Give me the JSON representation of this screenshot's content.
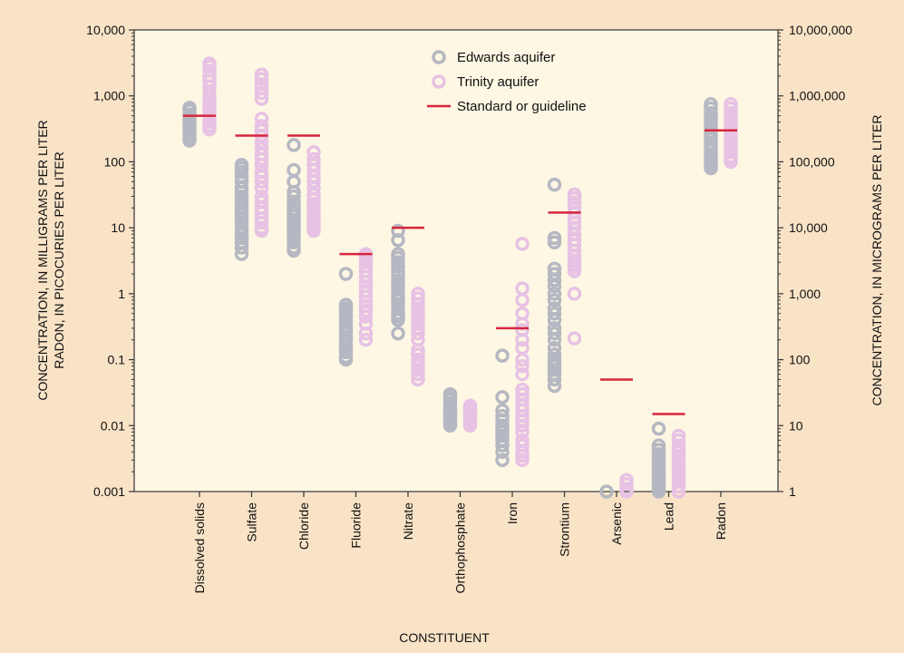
{
  "chart_data": {
    "type": "scatter",
    "y_scale": "log",
    "ylim": [
      0.001,
      10000
    ],
    "y_ticks": [
      0.001,
      0.01,
      0.1,
      1,
      10,
      100,
      1000,
      10000
    ],
    "y_tick_labels": [
      "0.001",
      "0.01",
      "0.1",
      "1",
      "10",
      "100",
      "1,000",
      "10,000"
    ],
    "y2_tick_labels": [
      "1",
      "10",
      "100",
      "1,000",
      "10,000",
      "100,000",
      "1,000,000",
      "10,000,000"
    ],
    "ylabel_line1": "CONCENTRATION, IN MILLIGRAMS PER LITER",
    "ylabel_line2": "RADON, IN PICOCURIES PER LITER",
    "y2label": "CONCENTRATION, IN MICROGRAMS PER LITER",
    "xlabel": "CONSTITUENT",
    "categories": [
      "Dissolved solids",
      "Sulfate",
      "Chloride",
      "Fluoride",
      "Nitrate",
      "Orthophosphate",
      "Iron",
      "Strontium",
      "Arsenic",
      "Lead",
      "Radon"
    ],
    "grid": false,
    "legend_position": "top-center",
    "legend": [
      {
        "label": "Edwards aquifer",
        "kind": "marker",
        "color": "#b5b8c2"
      },
      {
        "label": "Trinity aquifer",
        "kind": "marker",
        "color": "#e7c2e4"
      },
      {
        "label": "Standard or guideline",
        "kind": "line",
        "color": "#d6253c"
      }
    ],
    "series": [
      {
        "name": "Edwards aquifer",
        "color": "#b5b8c2",
        "values": [
          [
            210,
            230,
            260,
            290,
            310,
            340,
            370,
            400,
            440,
            480,
            520,
            600,
            660
          ],
          [
            4,
            5,
            6,
            7,
            8,
            9,
            10,
            12,
            14,
            16,
            18,
            20,
            23,
            26,
            30,
            35,
            40,
            50,
            60,
            70,
            80,
            90
          ],
          [
            4.5,
            5,
            6,
            7,
            8,
            9,
            10,
            11,
            12,
            13,
            15,
            17,
            19,
            22,
            25,
            30,
            35,
            50,
            75,
            180
          ],
          [
            0.1,
            0.11,
            0.13,
            0.15,
            0.17,
            0.2,
            0.22,
            0.25,
            0.28,
            0.32,
            0.38,
            0.45,
            0.5,
            0.55,
            0.6,
            0.68,
            2
          ],
          [
            0.25,
            0.4,
            0.45,
            0.5,
            0.6,
            0.7,
            0.8,
            0.9,
            1,
            1.2,
            1.4,
            1.6,
            1.9,
            2.2,
            2.6,
            3,
            3.5,
            4,
            6.5,
            9
          ],
          [
            0.01,
            0.011,
            0.012,
            0.013,
            0.014,
            0.015,
            0.016,
            0.017,
            0.018,
            0.02,
            0.022,
            0.025,
            0.028,
            0.03
          ],
          [
            0.003,
            0.004,
            0.005,
            0.006,
            0.007,
            0.008,
            0.009,
            0.01,
            0.012,
            0.014,
            0.017,
            0.027,
            0.115
          ],
          [
            0.04,
            0.05,
            0.06,
            0.07,
            0.08,
            0.09,
            0.1,
            0.12,
            0.15,
            0.2,
            0.25,
            0.3,
            0.4,
            0.5,
            0.6,
            0.8,
            1,
            1.3,
            1.6,
            2,
            2.4,
            6,
            7,
            45
          ],
          [
            0.001
          ],
          [
            0.001,
            0.0011,
            0.0012,
            0.0013,
            0.0014,
            0.0015,
            0.0017,
            0.0019,
            0.0021,
            0.0024,
            0.0028,
            0.0032,
            0.0037,
            0.0043,
            0.005,
            0.009
          ],
          [
            80,
            90,
            100,
            110,
            120,
            130,
            150,
            170,
            190,
            220,
            250,
            280,
            320,
            360,
            400,
            450,
            500,
            550,
            650,
            750
          ]
        ]
      },
      {
        "name": "Trinity aquifer",
        "color": "#e7c2e4",
        "values": [
          [
            310,
            350,
            400,
            450,
            500,
            560,
            620,
            700,
            800,
            900,
            1100,
            1400,
            1700,
            2000,
            2400,
            2800,
            3100
          ],
          [
            9,
            10,
            12,
            14,
            17,
            20,
            25,
            30,
            40,
            50,
            60,
            70,
            90,
            110,
            130,
            160,
            200,
            250,
            300,
            350,
            450,
            900,
            1100,
            1300,
            1500,
            1800,
            2100
          ],
          [
            9,
            10,
            11,
            12,
            13,
            15,
            17,
            20,
            23,
            27,
            32,
            40,
            50,
            60,
            75,
            90,
            110,
            140
          ],
          [
            0.2,
            0.25,
            0.35,
            0.45,
            0.55,
            0.65,
            0.75,
            0.9,
            1.1,
            1.3,
            1.5,
            1.8,
            2.2,
            2.6,
            3,
            3.4,
            3.8,
            4
          ],
          [
            0.05,
            0.06,
            0.07,
            0.08,
            0.09,
            0.1,
            0.12,
            0.14,
            0.2,
            0.25,
            0.3,
            0.35,
            0.4,
            0.45,
            0.5,
            0.55,
            0.6,
            0.7,
            0.85,
            1
          ],
          [
            0.01,
            0.011,
            0.012,
            0.013,
            0.014,
            0.015,
            0.016,
            0.017,
            0.018,
            0.019,
            0.02
          ],
          [
            0.003,
            0.0035,
            0.004,
            0.005,
            0.006,
            0.008,
            0.01,
            0.012,
            0.014,
            0.017,
            0.02,
            0.025,
            0.03,
            0.035,
            0.06,
            0.08,
            0.1,
            0.15,
            0.2,
            0.28,
            0.35,
            0.5,
            0.8,
            1.2,
            5.7
          ],
          [
            0.21,
            1,
            2.2,
            2.5,
            2.8,
            3.2,
            3.7,
            4.5,
            5.5,
            6.5,
            8,
            10,
            12,
            14,
            17,
            20,
            24,
            28,
            32
          ],
          [
            0.001,
            0.0011,
            0.0013,
            0.0015
          ],
          [
            0.001,
            0.0012,
            0.0014,
            0.0016,
            0.0019,
            0.0022,
            0.0025,
            0.003,
            0.0035,
            0.004,
            0.0045,
            0.005,
            0.006,
            0.007
          ],
          [
            100,
            110,
            120,
            140,
            160,
            180,
            200,
            230,
            260,
            290,
            330,
            370,
            420,
            480,
            550,
            650,
            750
          ]
        ]
      }
    ],
    "standards": {
      "name": "Standard or guideline",
      "color": "#d6253c",
      "values": [
        500,
        250,
        250,
        4,
        10,
        null,
        0.3,
        17,
        0.05,
        0.015,
        300
      ]
    }
  }
}
